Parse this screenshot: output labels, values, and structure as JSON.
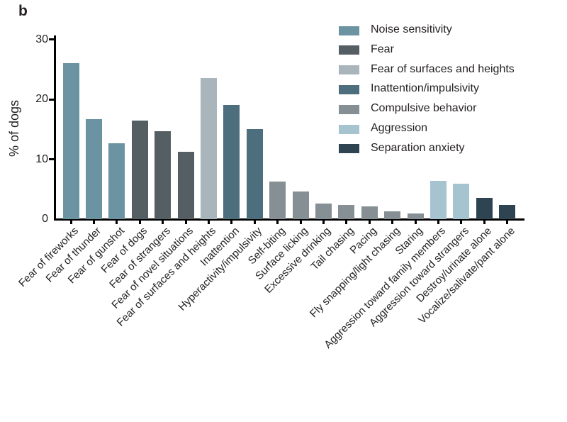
{
  "panel_label": "b",
  "colors": {
    "axis": "#000000",
    "text": "#231f20",
    "background": "#ffffff"
  },
  "chart_data": {
    "type": "bar",
    "title": "",
    "xlabel": "",
    "ylabel": "% of dogs",
    "ylim": [
      0,
      30
    ],
    "yticks": [
      0,
      10,
      20,
      30
    ],
    "grid": false,
    "legend_position": "top-right",
    "legend": [
      {
        "label": "Noise sensitivity",
        "color": "#6b93a1"
      },
      {
        "label": "Fear",
        "color": "#545e63"
      },
      {
        "label": "Fear of surfaces and heights",
        "color": "#a9b5bb"
      },
      {
        "label": "Inattention/impulsivity",
        "color": "#4d6f7d"
      },
      {
        "label": "Compulsive behavior",
        "color": "#858f94"
      },
      {
        "label": "Aggression",
        "color": "#a5c4d0"
      },
      {
        "label": "Separation anxiety",
        "color": "#2e4450"
      }
    ],
    "categories": [
      "Fear of fireworks",
      "Fear of thunder",
      "Fear of gunshot",
      "Fear of dogs",
      "Fear of strangers",
      "Fear of novel situations",
      "Fear of surfaces and heights",
      "Inattention",
      "Hyperactivity/impulsivity",
      "Self-biting",
      "Surface licking",
      "Excessive drinking",
      "Tail chasing",
      "Pacing",
      "Fly snapping/light chasing",
      "Staring",
      "Aggression toward family members",
      "Aggression toward strangers",
      "Destroy/urinate alone",
      "Vocalize/salivate/pant alone"
    ],
    "values": [
      26.0,
      16.7,
      12.7,
      16.5,
      14.7,
      11.2,
      23.5,
      19.1,
      15.0,
      6.3,
      4.6,
      2.6,
      2.4,
      2.1,
      1.3,
      0.9,
      6.4,
      5.9,
      3.6,
      2.4
    ],
    "groups": [
      "Noise sensitivity",
      "Noise sensitivity",
      "Noise sensitivity",
      "Fear",
      "Fear",
      "Fear",
      "Fear of surfaces and heights",
      "Inattention/impulsivity",
      "Inattention/impulsivity",
      "Compulsive behavior",
      "Compulsive behavior",
      "Compulsive behavior",
      "Compulsive behavior",
      "Compulsive behavior",
      "Compulsive behavior",
      "Compulsive behavior",
      "Aggression",
      "Aggression",
      "Separation anxiety",
      "Separation anxiety"
    ]
  }
}
